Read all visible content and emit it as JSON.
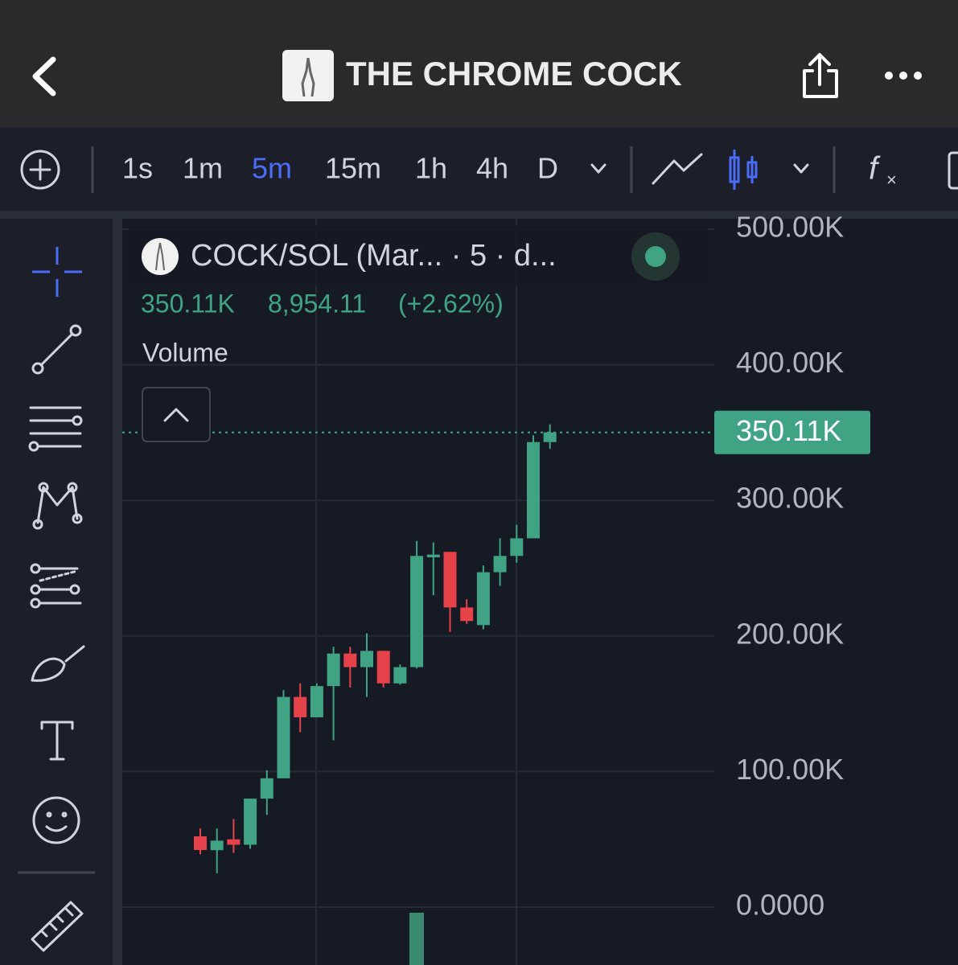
{
  "header": {
    "title": "THE CHROME COCK"
  },
  "toolbar": {
    "intervals": [
      "1s",
      "1m",
      "5m",
      "15m",
      "1h",
      "4h",
      "D"
    ],
    "active": 2
  },
  "legend": {
    "symbol": "COCK/SOL (Mar... · 5 · d...",
    "price": "350.11K",
    "change": "8,954.11",
    "change_pct": "(+2.62%)",
    "study": "Volume"
  },
  "chart_data": {
    "type": "candlestick",
    "open": [
      52200,
      42000,
      50000,
      46000,
      80000,
      95000,
      155000,
      140000,
      163000,
      187000,
      177000,
      189000,
      165000,
      177000,
      258000,
      262000,
      221000,
      208000,
      247000,
      259000,
      272000,
      343000
    ],
    "close": [
      42100,
      49000,
      46000,
      80000,
      95000,
      155000,
      140000,
      163000,
      187000,
      177000,
      189000,
      165000,
      177000,
      259000,
      260000,
      221000,
      211000,
      247000,
      259000,
      272000,
      343000,
      350110
    ],
    "high": [
      58000,
      58000,
      65000,
      80000,
      101000,
      160000,
      165000,
      165000,
      192000,
      192000,
      202000,
      189000,
      179000,
      270000,
      269000,
      262000,
      227000,
      252000,
      272000,
      282000,
      348000,
      356000
    ],
    "low": [
      39000,
      25000,
      40000,
      43000,
      68000,
      95000,
      129000,
      140000,
      123000,
      162000,
      155000,
      162000,
      164000,
      176000,
      230000,
      203000,
      209000,
      205000,
      237000,
      254000,
      272000,
      338000
    ],
    "up_color": "#3fa384",
    "down_color": "#e5424a",
    "ylim": [
      -42700,
      507700
    ],
    "yticks": [
      {
        "value": 0,
        "label": "0.0000"
      },
      {
        "value": 100000,
        "label": "100.00K"
      },
      {
        "value": 200000,
        "label": "200.00K"
      },
      {
        "value": 300000,
        "label": "300.00K"
      },
      {
        "value": 400000,
        "label": "400.00K"
      },
      {
        "value": 500000,
        "label": "500.00K"
      }
    ],
    "grid": true,
    "last_price": {
      "value": 350110,
      "label": "350.11K"
    }
  }
}
